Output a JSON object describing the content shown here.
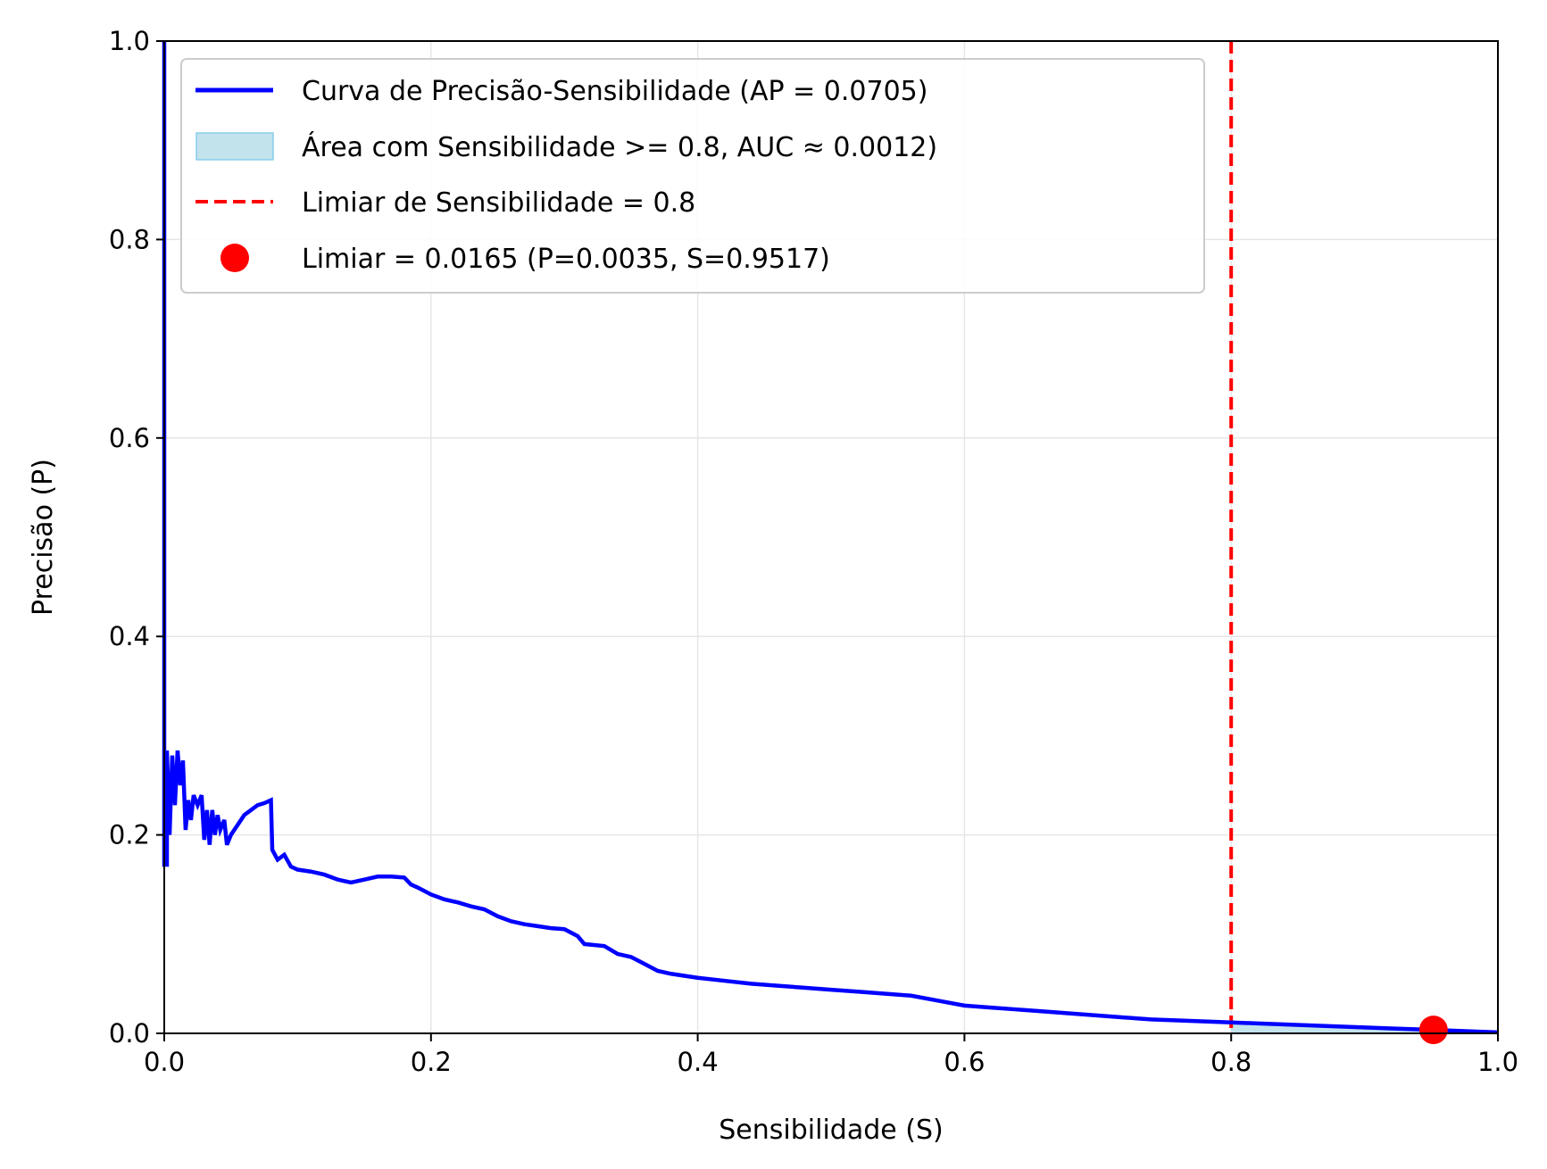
{
  "chart_data": {
    "type": "line",
    "title": "",
    "xlabel": "Sensibilidade (S)",
    "ylabel": "Precisão (P)",
    "xlim": [
      0.0,
      1.0
    ],
    "ylim": [
      0.0,
      1.0
    ],
    "x_ticks": [
      "0.0",
      "0.2",
      "0.4",
      "0.6",
      "0.8",
      "1.0"
    ],
    "y_ticks": [
      "0.0",
      "0.2",
      "0.4",
      "0.6",
      "0.8",
      "1.0"
    ],
    "grid": true,
    "legend_position": "top-left",
    "colors": {
      "curve": "#0000ff",
      "area_fill": "#add8e6",
      "threshold_line": "#ff0000",
      "marker": "#ff0000",
      "grid": "#e6e6e6"
    },
    "legend": [
      {
        "label": "Curva de Precisão-Sensibilidade (AP = 0.0705)",
        "kind": "line"
      },
      {
        "label": "Área com Sensibilidade >= 0.8, AUC ≈ 0.0012)",
        "kind": "patch"
      },
      {
        "label": "Limiar de Sensibilidade = 0.8",
        "kind": "dashed"
      },
      {
        "label": "Limiar = 0.0165 (P=0.0035, S=0.9517)",
        "kind": "marker"
      }
    ],
    "series": [
      {
        "name": "Curva de Precisão-Sensibilidade (AP = 0.0705)",
        "points": [
          [
            0.0,
            1.0
          ],
          [
            0.0,
            0.17
          ],
          [
            0.002,
            0.17
          ],
          [
            0.002,
            0.285
          ],
          [
            0.004,
            0.2
          ],
          [
            0.006,
            0.28
          ],
          [
            0.008,
            0.23
          ],
          [
            0.01,
            0.285
          ],
          [
            0.012,
            0.25
          ],
          [
            0.014,
            0.275
          ],
          [
            0.016,
            0.205
          ],
          [
            0.018,
            0.235
          ],
          [
            0.02,
            0.215
          ],
          [
            0.022,
            0.24
          ],
          [
            0.025,
            0.23
          ],
          [
            0.028,
            0.24
          ],
          [
            0.03,
            0.195
          ],
          [
            0.032,
            0.225
          ],
          [
            0.034,
            0.19
          ],
          [
            0.036,
            0.225
          ],
          [
            0.038,
            0.2
          ],
          [
            0.04,
            0.22
          ],
          [
            0.042,
            0.205
          ],
          [
            0.045,
            0.215
          ],
          [
            0.047,
            0.19
          ],
          [
            0.05,
            0.2
          ],
          [
            0.055,
            0.21
          ],
          [
            0.06,
            0.22
          ],
          [
            0.065,
            0.225
          ],
          [
            0.07,
            0.23
          ],
          [
            0.075,
            0.232
          ],
          [
            0.08,
            0.235
          ],
          [
            0.081,
            0.185
          ],
          [
            0.085,
            0.175
          ],
          [
            0.09,
            0.18
          ],
          [
            0.095,
            0.168
          ],
          [
            0.1,
            0.165
          ],
          [
            0.11,
            0.163
          ],
          [
            0.12,
            0.16
          ],
          [
            0.13,
            0.155
          ],
          [
            0.14,
            0.152
          ],
          [
            0.15,
            0.155
          ],
          [
            0.16,
            0.158
          ],
          [
            0.17,
            0.158
          ],
          [
            0.18,
            0.157
          ],
          [
            0.185,
            0.15
          ],
          [
            0.19,
            0.147
          ],
          [
            0.2,
            0.14
          ],
          [
            0.21,
            0.135
          ],
          [
            0.22,
            0.132
          ],
          [
            0.23,
            0.128
          ],
          [
            0.24,
            0.125
          ],
          [
            0.25,
            0.118
          ],
          [
            0.26,
            0.113
          ],
          [
            0.27,
            0.11
          ],
          [
            0.28,
            0.108
          ],
          [
            0.29,
            0.106
          ],
          [
            0.3,
            0.105
          ],
          [
            0.31,
            0.098
          ],
          [
            0.315,
            0.09
          ],
          [
            0.33,
            0.088
          ],
          [
            0.34,
            0.08
          ],
          [
            0.35,
            0.077
          ],
          [
            0.36,
            0.07
          ],
          [
            0.37,
            0.063
          ],
          [
            0.38,
            0.06
          ],
          [
            0.4,
            0.056
          ],
          [
            0.42,
            0.053
          ],
          [
            0.44,
            0.05
          ],
          [
            0.46,
            0.048
          ],
          [
            0.48,
            0.046
          ],
          [
            0.5,
            0.044
          ],
          [
            0.52,
            0.042
          ],
          [
            0.54,
            0.04
          ],
          [
            0.56,
            0.038
          ],
          [
            0.58,
            0.033
          ],
          [
            0.6,
            0.028
          ],
          [
            0.62,
            0.026
          ],
          [
            0.64,
            0.024
          ],
          [
            0.66,
            0.022
          ],
          [
            0.68,
            0.02
          ],
          [
            0.7,
            0.018
          ],
          [
            0.72,
            0.016
          ],
          [
            0.74,
            0.014
          ],
          [
            0.76,
            0.013
          ],
          [
            0.78,
            0.012
          ],
          [
            0.8,
            0.011
          ],
          [
            0.82,
            0.01
          ],
          [
            0.84,
            0.009
          ],
          [
            0.86,
            0.008
          ],
          [
            0.88,
            0.007
          ],
          [
            0.9,
            0.006
          ],
          [
            0.92,
            0.005
          ],
          [
            0.94,
            0.004
          ],
          [
            0.952,
            0.0035
          ],
          [
            0.96,
            0.003
          ],
          [
            0.98,
            0.002
          ],
          [
            1.0,
            0.001
          ]
        ]
      }
    ],
    "threshold_x": 0.8,
    "marker_point": {
      "x": 0.9517,
      "y": 0.0035
    }
  }
}
